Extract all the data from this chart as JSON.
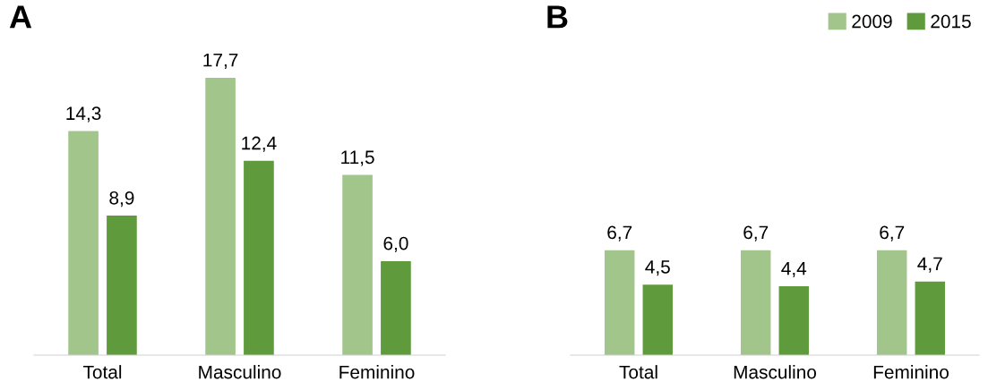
{
  "chart_data": [
    {
      "type": "bar",
      "title": "A",
      "categories": [
        "Total",
        "Masculino",
        "Feminino"
      ],
      "series": [
        {
          "color": "#a2c58c",
          "values": [
            14.3,
            17.7,
            11.5
          ],
          "value_labels": [
            "14,3",
            "17,7",
            "11,5"
          ]
        },
        {
          "color": "#5f9a3c",
          "values": [
            8.9,
            12.4,
            6.0
          ],
          "value_labels": [
            "8,9",
            "12,4",
            "6,0"
          ]
        }
      ],
      "legend": false,
      "grid": false
    },
    {
      "type": "bar",
      "title": "B",
      "categories": [
        "Total",
        "Masculino",
        "Feminino"
      ],
      "series": [
        {
          "name": "2009",
          "color": "#a2c58c",
          "values": [
            6.7,
            6.7,
            6.7
          ],
          "value_labels": [
            "6,7",
            "6,7",
            "6,7"
          ]
        },
        {
          "name": "2015",
          "color": "#5f9a3c",
          "values": [
            4.5,
            4.4,
            4.7
          ],
          "value_labels": [
            "4,5",
            "4,4",
            "4,7"
          ]
        }
      ],
      "legend": "top right",
      "grid": false
    }
  ]
}
